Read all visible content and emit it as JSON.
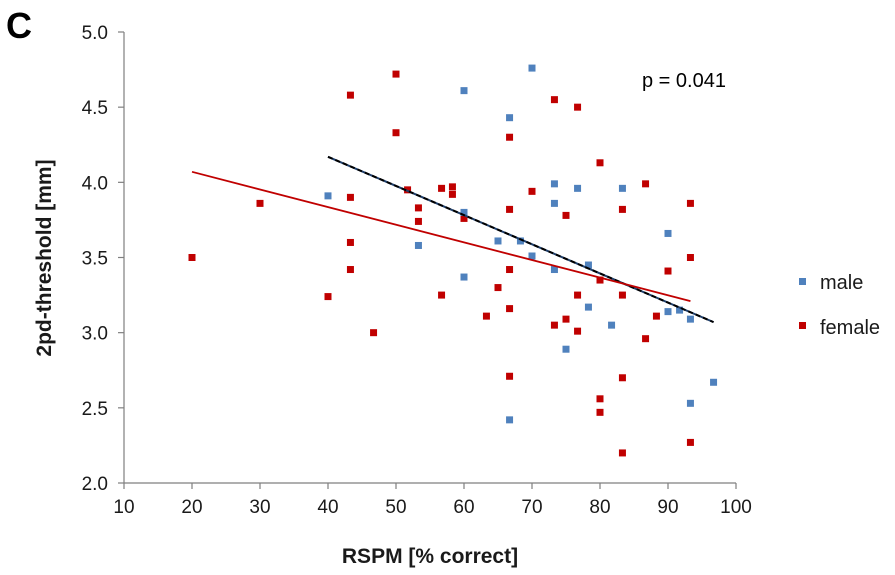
{
  "chart_data": {
    "type": "scatter",
    "panel_label": "C",
    "xlabel": "RSPM [% correct]",
    "ylabel": "2pd-threshold [mm]",
    "xlim": [
      10,
      100
    ],
    "ylim": [
      2.0,
      5.0
    ],
    "x_ticks": [
      "10",
      "20",
      "30",
      "40",
      "50",
      "60",
      "70",
      "80",
      "90",
      "100"
    ],
    "y_ticks": [
      "2.0",
      "2.5",
      "3.0",
      "3.5",
      "4.0",
      "4.5",
      "5.0"
    ],
    "grid": false,
    "legend_position": "right",
    "annotation": "p = 0.041",
    "series": [
      {
        "name": "male",
        "color": "#4f81bd",
        "points": [
          [
            40,
            3.91
          ],
          [
            53.3,
            3.58
          ],
          [
            60,
            4.61
          ],
          [
            60,
            3.8
          ],
          [
            60,
            3.37
          ],
          [
            65,
            3.61
          ],
          [
            66.7,
            4.43
          ],
          [
            66.7,
            2.42
          ],
          [
            68.3,
            3.61
          ],
          [
            70,
            4.76
          ],
          [
            70,
            3.51
          ],
          [
            73.3,
            3.99
          ],
          [
            73.3,
            3.86
          ],
          [
            73.3,
            3.42
          ],
          [
            75,
            2.89
          ],
          [
            76.7,
            3.96
          ],
          [
            78.3,
            3.45
          ],
          [
            78.3,
            3.17
          ],
          [
            81.7,
            3.05
          ],
          [
            83.3,
            3.96
          ],
          [
            90,
            3.66
          ],
          [
            90,
            3.14
          ],
          [
            91.7,
            3.15
          ],
          [
            93.3,
            3.09
          ],
          [
            93.3,
            2.53
          ],
          [
            96.7,
            2.67
          ]
        ],
        "trendline": [
          [
            40,
            4.17
          ],
          [
            96.7,
            3.07
          ]
        ]
      },
      {
        "name": "female",
        "color": "#c00000",
        "points": [
          [
            20,
            3.5
          ],
          [
            30,
            3.86
          ],
          [
            40,
            3.24
          ],
          [
            43.3,
            4.58
          ],
          [
            43.3,
            3.9
          ],
          [
            43.3,
            3.6
          ],
          [
            43.3,
            3.42
          ],
          [
            46.7,
            3.0
          ],
          [
            50,
            4.72
          ],
          [
            50,
            4.33
          ],
          [
            51.7,
            3.95
          ],
          [
            53.3,
            3.83
          ],
          [
            53.3,
            3.74
          ],
          [
            56.7,
            3.96
          ],
          [
            56.7,
            3.25
          ],
          [
            58.3,
            3.97
          ],
          [
            58.3,
            3.92
          ],
          [
            60,
            3.76
          ],
          [
            63.3,
            3.11
          ],
          [
            65,
            3.3
          ],
          [
            66.7,
            4.3
          ],
          [
            66.7,
            3.82
          ],
          [
            66.7,
            3.42
          ],
          [
            66.7,
            3.16
          ],
          [
            66.7,
            2.71
          ],
          [
            70,
            3.94
          ],
          [
            73.3,
            4.55
          ],
          [
            73.3,
            3.05
          ],
          [
            75,
            3.78
          ],
          [
            75,
            3.09
          ],
          [
            76.7,
            4.5
          ],
          [
            76.7,
            3.25
          ],
          [
            76.7,
            3.01
          ],
          [
            80,
            4.13
          ],
          [
            80,
            3.35
          ],
          [
            80,
            2.56
          ],
          [
            80,
            2.47
          ],
          [
            83.3,
            3.82
          ],
          [
            83.3,
            3.25
          ],
          [
            83.3,
            2.7
          ],
          [
            83.3,
            2.2
          ],
          [
            86.7,
            3.99
          ],
          [
            86.7,
            2.96
          ],
          [
            88.3,
            3.11
          ],
          [
            90,
            3.41
          ],
          [
            93.3,
            3.86
          ],
          [
            93.3,
            3.5
          ],
          [
            93.3,
            2.27
          ]
        ],
        "trendline": [
          [
            20,
            4.07
          ],
          [
            93.3,
            3.21
          ]
        ]
      }
    ]
  }
}
